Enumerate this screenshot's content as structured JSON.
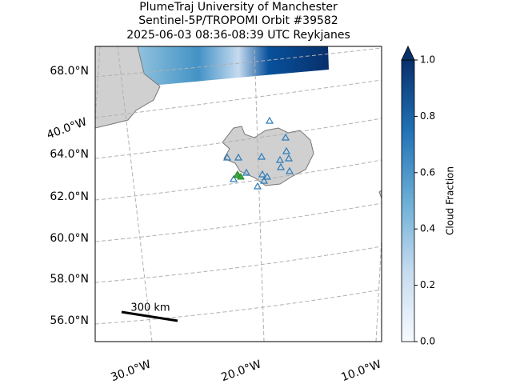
{
  "header": {
    "lines": [
      "PlumeTraj    University of Manchester",
      "Sentinel-5P/TROPOMI Orbit #39582",
      "2025-06-03   08:36-08:39 UTC   Reykjanes"
    ]
  },
  "map": {
    "lat_labels": [
      "68.0°N",
      "64.0°N",
      "62.0°N",
      "60.0°N",
      "58.0°N",
      "56.0°N"
    ],
    "lon_labels": [
      "40.0°W",
      "30.0°W",
      "20.0°W",
      "10.0°W"
    ],
    "scale_label": "300 km"
  },
  "colorbar": {
    "label": "Cloud Fraction",
    "lim": [
      0,
      1
    ],
    "ticks": [
      {
        "value": 0,
        "label": "0.0"
      },
      {
        "value": 0.2,
        "label": "0.2"
      },
      {
        "value": 0.4,
        "label": "0.4"
      },
      {
        "value": 0.6,
        "label": "0.6"
      },
      {
        "value": 0.8,
        "label": "0.8"
      },
      {
        "value": 1,
        "label": "1.0"
      }
    ]
  }
}
